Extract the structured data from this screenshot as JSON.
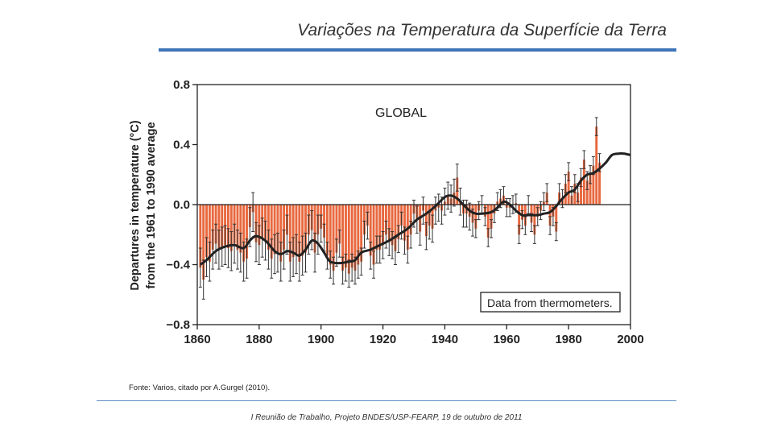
{
  "slide": {
    "title": "Variações na Temperatura da Superfície da Terra",
    "source": "Fonte: Varios, citado por A.Gurgel (2010).",
    "footer": "I Reunião de Trabalho, Projeto BNDES/USP-FEARP, 19 de outubro de 2011"
  },
  "colors": {
    "accent": "#3e74b8",
    "bars": "#e8683e",
    "smooth": "#222222"
  },
  "chart_data": {
    "type": "bar",
    "title": "GLOBAL",
    "annotation": "Data from thermometers.",
    "ylabel_line1": "Departures in temperature (°C)",
    "ylabel_line2": "from the 1961 to 1990 average",
    "xlim": [
      1860,
      2000
    ],
    "ylim": [
      -0.8,
      0.8
    ],
    "xticks": [
      "1860",
      "1880",
      "1900",
      "1920",
      "1940",
      "1960",
      "1980",
      "2000"
    ],
    "yticks": [
      "0.8",
      "0.4",
      "0.0",
      "−0.4",
      "−0.8"
    ],
    "ytick_values": [
      0.8,
      0.4,
      0.0,
      -0.4,
      -0.8
    ],
    "series_note": "annual anomalies with uncertainty bars and a smoothed curve",
    "years_start": 1861,
    "annual_values": [
      -0.42,
      -0.5,
      -0.35,
      -0.38,
      -0.3,
      -0.26,
      -0.3,
      -0.28,
      -0.27,
      -0.29,
      -0.31,
      -0.26,
      -0.3,
      -0.32,
      -0.38,
      -0.36,
      -0.15,
      -0.05,
      -0.25,
      -0.27,
      -0.22,
      -0.24,
      -0.3,
      -0.36,
      -0.33,
      -0.32,
      -0.38,
      -0.3,
      -0.2,
      -0.38,
      -0.35,
      -0.33,
      -0.38,
      -0.34,
      -0.32,
      -0.2,
      -0.17,
      -0.32,
      -0.2,
      -0.16,
      -0.22,
      -0.34,
      -0.4,
      -0.44,
      -0.32,
      -0.26,
      -0.44,
      -0.42,
      -0.46,
      -0.42,
      -0.44,
      -0.4,
      -0.38,
      -0.2,
      -0.14,
      -0.34,
      -0.4,
      -0.3,
      -0.3,
      -0.27,
      -0.2,
      -0.25,
      -0.27,
      -0.31,
      -0.23,
      -0.14,
      -0.24,
      -0.3,
      -0.2,
      -0.06,
      -0.1,
      -0.18,
      -0.04,
      -0.21,
      -0.14,
      -0.16,
      -0.04,
      -0.02,
      -0.04,
      0.02,
      0.06,
      0.04,
      0.08,
      0.18,
      0.02,
      -0.06,
      -0.06,
      -0.08,
      -0.12,
      -0.16,
      -0.04,
      0.0,
      -0.08,
      -0.22,
      -0.16,
      -0.06,
      0.02,
      0.04,
      0.06,
      -0.02,
      -0.02,
      0.0,
      0.01,
      -0.2,
      -0.1,
      -0.14,
      0.0,
      -0.12,
      -0.2,
      -0.08,
      -0.04,
      0.02,
      0.08,
      -0.14,
      -0.08,
      -0.18,
      0.08,
      0.04,
      0.14,
      0.22,
      0.06,
      0.14,
      0.08,
      0.18,
      0.3,
      0.16,
      0.2,
      0.26,
      0.52,
      0.28
    ],
    "smooth_points": [
      [
        1861,
        -0.4
      ],
      [
        1863,
        -0.37
      ],
      [
        1866,
        -0.31
      ],
      [
        1869,
        -0.28
      ],
      [
        1872,
        -0.27
      ],
      [
        1875,
        -0.29
      ],
      [
        1877,
        -0.24
      ],
      [
        1879,
        -0.21
      ],
      [
        1882,
        -0.24
      ],
      [
        1885,
        -0.31
      ],
      [
        1887,
        -0.33
      ],
      [
        1889,
        -0.31
      ],
      [
        1891,
        -0.32
      ],
      [
        1893,
        -0.34
      ],
      [
        1895,
        -0.3
      ],
      [
        1897,
        -0.24
      ],
      [
        1899,
        -0.26
      ],
      [
        1901,
        -0.32
      ],
      [
        1903,
        -0.38
      ],
      [
        1906,
        -0.39
      ],
      [
        1909,
        -0.38
      ],
      [
        1911,
        -0.37
      ],
      [
        1913,
        -0.32
      ],
      [
        1916,
        -0.3
      ],
      [
        1919,
        -0.27
      ],
      [
        1922,
        -0.24
      ],
      [
        1925,
        -0.2
      ],
      [
        1928,
        -0.16
      ],
      [
        1931,
        -0.1
      ],
      [
        1934,
        -0.06
      ],
      [
        1937,
        -0.01
      ],
      [
        1940,
        0.05
      ],
      [
        1942,
        0.06
      ],
      [
        1944,
        0.04
      ],
      [
        1946,
        0.0
      ],
      [
        1948,
        -0.04
      ],
      [
        1950,
        -0.06
      ],
      [
        1952,
        -0.06
      ],
      [
        1955,
        -0.05
      ],
      [
        1957,
        -0.02
      ],
      [
        1959,
        0.02
      ],
      [
        1961,
        0.0
      ],
      [
        1963,
        -0.04
      ],
      [
        1965,
        -0.07
      ],
      [
        1967,
        -0.07
      ],
      [
        1970,
        -0.07
      ],
      [
        1972,
        -0.06
      ],
      [
        1974,
        -0.05
      ],
      [
        1976,
        -0.01
      ],
      [
        1978,
        0.04
      ],
      [
        1980,
        0.08
      ],
      [
        1982,
        0.1
      ],
      [
        1984,
        0.16
      ],
      [
        1986,
        0.2
      ],
      [
        1988,
        0.21
      ],
      [
        1990,
        0.24
      ],
      [
        1992,
        0.28
      ],
      [
        1994,
        0.33
      ],
      [
        1996,
        0.34
      ],
      [
        1998,
        0.34
      ],
      [
        2000,
        0.33
      ]
    ]
  }
}
